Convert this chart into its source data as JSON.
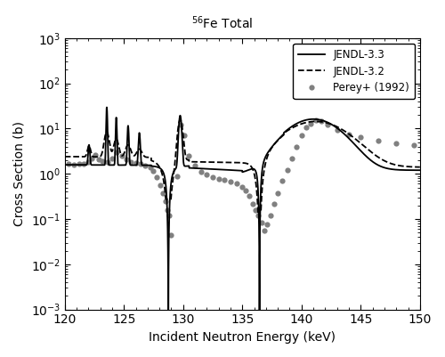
{
  "title": "$^{56}$Fe Total",
  "xlabel": "Incident Neutron Energy (keV)",
  "ylabel": "Cross Section (b)",
  "xlim": [
    120,
    150
  ],
  "ylim": [
    0.001,
    1000.0
  ],
  "legend_labels": [
    "JENDL-3.3",
    "JENDL-3.2",
    "Perey+ (1992)"
  ],
  "background_color": "#ffffff",
  "line_color": "#000000",
  "dot_color": "#808080",
  "figsize": [
    5.0,
    4.01
  ],
  "dpi": 100,
  "perey_x": [
    120.3,
    120.8,
    121.2,
    121.6,
    122.0,
    122.3,
    122.6,
    122.9,
    123.2,
    123.6,
    124.0,
    124.4,
    124.8,
    125.2,
    125.6,
    126.0,
    126.4,
    126.8,
    127.2,
    127.5,
    127.8,
    128.1,
    128.3,
    128.5,
    128.7,
    128.85,
    129.0,
    129.5,
    129.8,
    130.1,
    130.5,
    131.0,
    131.5,
    132.0,
    132.5,
    133.0,
    133.5,
    134.0,
    134.5,
    135.0,
    135.3,
    135.6,
    135.85,
    136.1,
    136.35,
    136.6,
    136.85,
    137.1,
    137.35,
    137.7,
    138.0,
    138.4,
    138.8,
    139.2,
    139.6,
    140.0,
    140.4,
    140.8,
    141.2,
    141.7,
    142.2,
    143.0,
    144.0,
    145.0,
    146.5,
    148.0,
    149.5
  ],
  "perey_y": [
    1.65,
    1.6,
    1.65,
    1.7,
    1.85,
    2.2,
    2.6,
    2.1,
    1.9,
    1.8,
    2.2,
    3.0,
    2.5,
    2.1,
    1.85,
    1.75,
    1.65,
    1.55,
    1.4,
    1.15,
    0.85,
    0.55,
    0.38,
    0.25,
    0.16,
    0.12,
    0.045,
    0.9,
    12.0,
    7.0,
    2.5,
    1.5,
    1.1,
    0.95,
    0.85,
    0.78,
    0.72,
    0.68,
    0.6,
    0.52,
    0.42,
    0.32,
    0.22,
    0.16,
    0.12,
    0.085,
    0.055,
    0.075,
    0.12,
    0.22,
    0.38,
    0.7,
    1.2,
    2.2,
    4.0,
    7.0,
    10.5,
    13.0,
    15.0,
    14.5,
    12.5,
    9.5,
    7.5,
    6.5,
    5.5,
    4.8,
    4.3
  ]
}
